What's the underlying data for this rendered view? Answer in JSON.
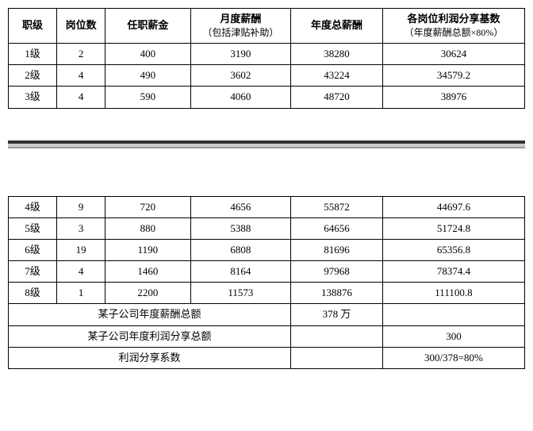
{
  "header": {
    "col1": "职级",
    "col2": "岗位数",
    "col3": "任职薪金",
    "col4_main": "月度薪酬",
    "col4_sub": "（包括津贴补助）",
    "col5": "年度总薪酬",
    "col6_main": "各岗位利润分享基数",
    "col6_sub": "（年度薪酬总额×80%）"
  },
  "rows_top": [
    {
      "c1": "1级",
      "c2": "2",
      "c3": "400",
      "c4": "3190",
      "c5": "38280",
      "c6": "30624"
    },
    {
      "c1": "2级",
      "c2": "4",
      "c3": "490",
      "c4": "3602",
      "c5": "43224",
      "c6": "34579.2"
    },
    {
      "c1": "3级",
      "c2": "4",
      "c3": "590",
      "c4": "4060",
      "c5": "48720",
      "c6": "38976"
    }
  ],
  "rows_bottom": [
    {
      "c1": "4级",
      "c2": "9",
      "c3": "720",
      "c4": "4656",
      "c5": "55872",
      "c6": "44697.6"
    },
    {
      "c1": "5级",
      "c2": "3",
      "c3": "880",
      "c4": "5388",
      "c5": "64656",
      "c6": "51724.8"
    },
    {
      "c1": "6级",
      "c2": "19",
      "c3": "1190",
      "c4": "6808",
      "c5": "81696",
      "c6": "65356.8"
    },
    {
      "c1": "7级",
      "c2": "4",
      "c3": "1460",
      "c4": "8164",
      "c5": "97968",
      "c6": "78374.4"
    },
    {
      "c1": "8级",
      "c2": "1",
      "c3": "2200",
      "c4": "11573",
      "c5": "138876",
      "c6": "111100.8"
    }
  ],
  "summary": [
    {
      "label": "某子公司年度薪酬总额",
      "v1": "378 万",
      "v2": ""
    },
    {
      "label": "某子公司年度利润分享总额",
      "v1": "",
      "v2": "300"
    },
    {
      "label": "利润分享系数",
      "v1": "",
      "v2": "300/378=80%"
    }
  ]
}
